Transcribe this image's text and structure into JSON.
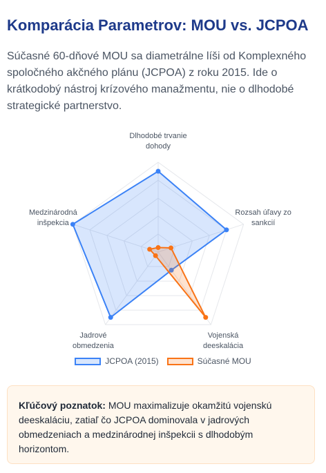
{
  "title": "Komparácia Parametrov: MOU vs. JCPOA",
  "description": "Súčasné 60-dňové MOU sa diametrálne líši od Komplexného spoločného akčného plánu (JCPOA) z roku 2015. Ide o krátkodobý nástroj krízového manažmentu, nie o dlhodobé strategické partnerstvo.",
  "chart_data": {
    "type": "radar",
    "categories": [
      "Dlhodobé trvanie dohody",
      "Rozsah úľavy zo sankcií",
      "Vojenská deeskalácia",
      "Jadrové obmedzenia",
      "Medzinárodná inšpekcia"
    ],
    "series": [
      {
        "name": "JCPOA (2015)",
        "color": "#3b82f6",
        "values": [
          90,
          80,
          25,
          90,
          100
        ]
      },
      {
        "name": "Súčasné MOU",
        "color": "#f97316",
        "values": [
          5,
          15,
          90,
          5,
          10
        ]
      }
    ],
    "rlim": [
      0,
      100
    ],
    "rticks": [
      20,
      40,
      60,
      80,
      100
    ],
    "grid": true,
    "legend": "bottom"
  },
  "insight": {
    "label": "Kľúčový poznatok:",
    "text": "MOU maximalizuje okamžitú vojenskú deeskaláciu, zatiaľ čo JCPOA dominovala v jadrových obmedzeniach a medzinárodnej inšpekcii s dlhodobým horizontom."
  }
}
